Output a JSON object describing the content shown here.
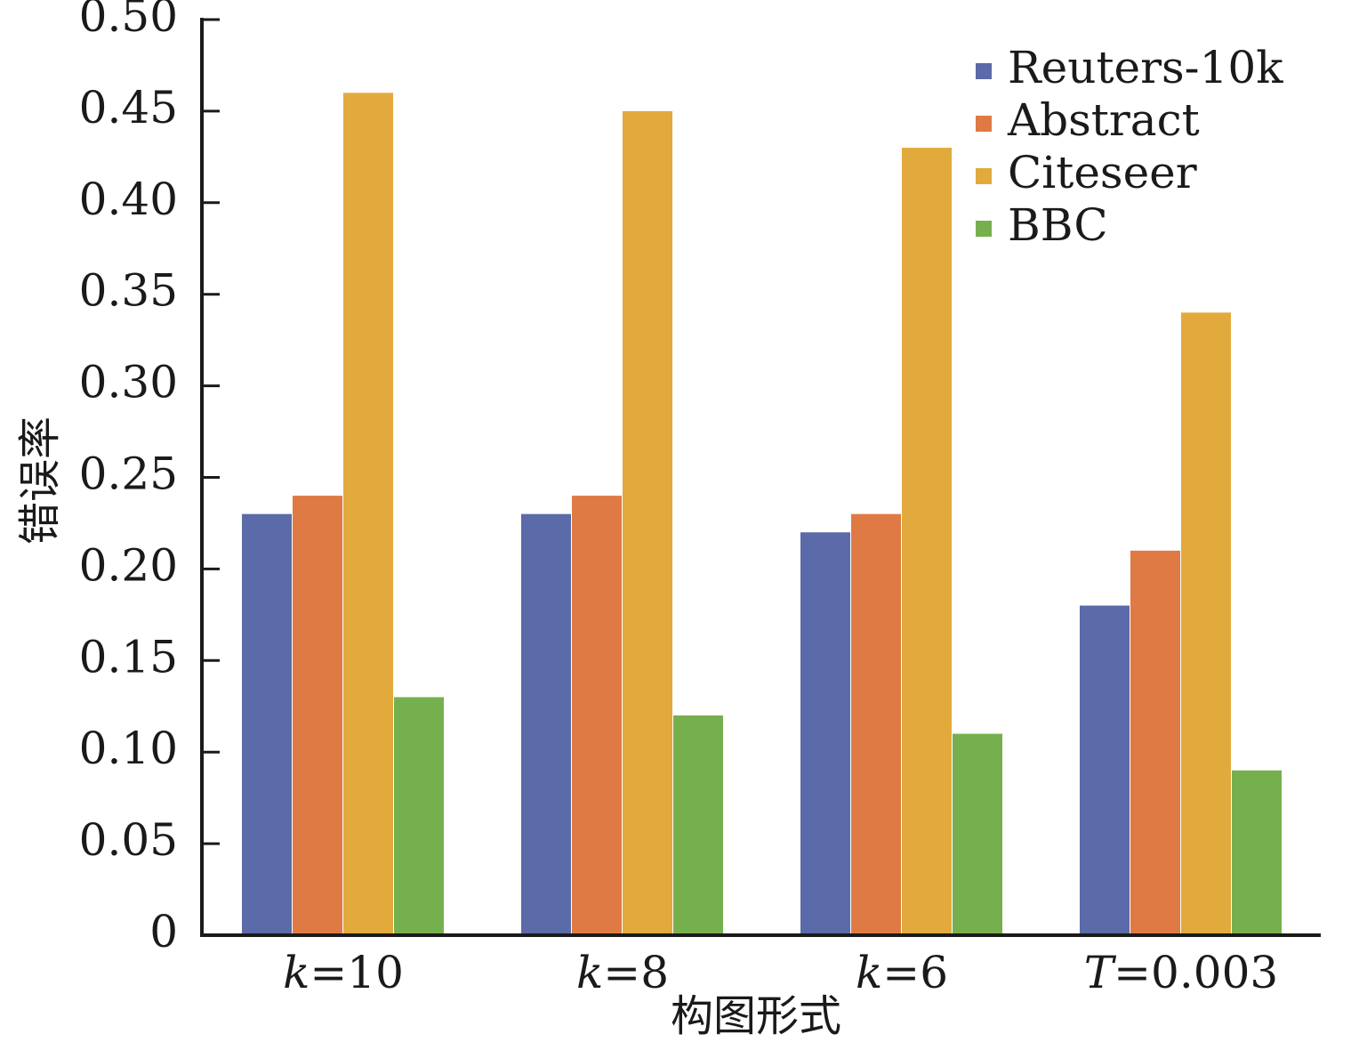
{
  "chart_data": {
    "type": "bar",
    "xlabel": "构图形式",
    "ylabel": "错误率",
    "ylim": [
      0,
      0.5
    ],
    "yticks": [
      "0",
      "0.05",
      "0.10",
      "0.15",
      "0.20",
      "0.25",
      "0.30",
      "0.35",
      "0.40",
      "0.45",
      "0.50"
    ],
    "categories": [
      {
        "var": "k",
        "rest": "=10"
      },
      {
        "var": "k",
        "rest": "=8"
      },
      {
        "var": "k",
        "rest": "=6"
      },
      {
        "var": "T",
        "rest": "=0.003"
      }
    ],
    "series": [
      {
        "name": "Reuters-10k",
        "color": "#5b6aa8",
        "values": [
          0.23,
          0.23,
          0.22,
          0.18
        ]
      },
      {
        "name": "Abstract",
        "color": "#df7a44",
        "values": [
          0.24,
          0.24,
          0.23,
          0.21
        ]
      },
      {
        "name": "Citeseer",
        "color": "#e2aa3c",
        "values": [
          0.46,
          0.45,
          0.43,
          0.34
        ]
      },
      {
        "name": "BBC",
        "color": "#76b04e",
        "values": [
          0.13,
          0.12,
          0.11,
          0.09
        ]
      }
    ],
    "legend_position": "top-right",
    "grid": false
  }
}
